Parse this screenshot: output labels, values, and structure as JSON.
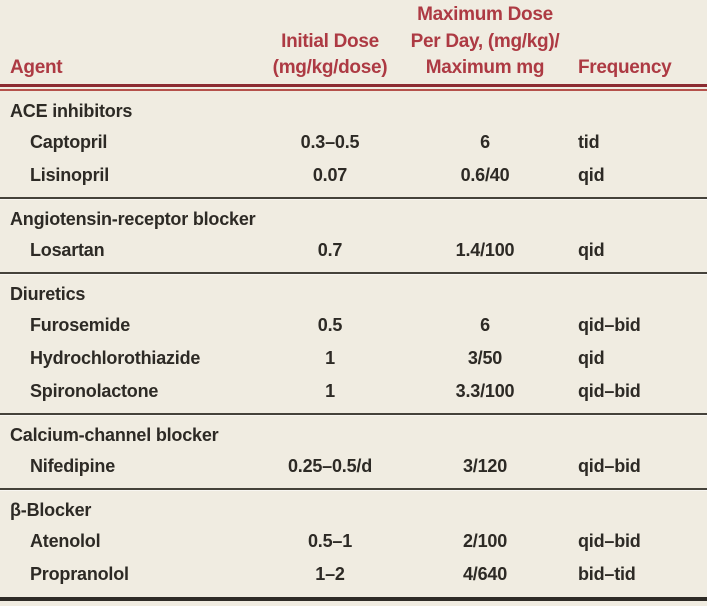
{
  "table": {
    "columns": [
      {
        "label": "Agent"
      },
      {
        "label": "Initial Dose\n(mg/kg/dose)"
      },
      {
        "label": "Maximum Dose\nPer Day, (mg/kg)/\nMaximum mg"
      },
      {
        "label": "Frequency"
      }
    ],
    "sections": [
      {
        "name": "ACE inhibitors",
        "rows": [
          {
            "agent": "Captopril",
            "initial_dose": "0.3–0.5",
            "max_dose": "6",
            "frequency": "tid"
          },
          {
            "agent": "Lisinopril",
            "initial_dose": "0.07",
            "max_dose": "0.6/40",
            "frequency": "qid"
          }
        ]
      },
      {
        "name": "Angiotensin-receptor blocker",
        "rows": [
          {
            "agent": "Losartan",
            "initial_dose": "0.7",
            "max_dose": "1.4/100",
            "frequency": "qid"
          }
        ]
      },
      {
        "name": "Diuretics",
        "rows": [
          {
            "agent": "Furosemide",
            "initial_dose": "0.5",
            "max_dose": "6",
            "frequency": "qid–bid"
          },
          {
            "agent": "Hydrochlorothiazide",
            "initial_dose": "1",
            "max_dose": "3/50",
            "frequency": "qid"
          },
          {
            "agent": "Spironolactone",
            "initial_dose": "1",
            "max_dose": "3.3/100",
            "frequency": "qid–bid"
          }
        ]
      },
      {
        "name": "Calcium-channel blocker",
        "rows": [
          {
            "agent": "Nifedipine",
            "initial_dose": "0.25–0.5/d",
            "max_dose": "3/120",
            "frequency": "qid–bid"
          }
        ]
      },
      {
        "name": "β-Blocker",
        "rows": [
          {
            "agent": "Atenolol",
            "initial_dose": "0.5–1",
            "max_dose": "2/100",
            "frequency": "qid–bid"
          },
          {
            "agent": "Propranolol",
            "initial_dose": "1–2",
            "max_dose": "4/640",
            "frequency": "bid–tid"
          }
        ]
      }
    ]
  },
  "colors": {
    "background": "#f0ece1",
    "header_text": "#ad3a43",
    "header_rule_dark": "#8c2b31",
    "header_rule_light": "#b5514b",
    "body_text": "#2d2a25",
    "section_divider": "#45423a",
    "bottom_border": "#2e2b26"
  }
}
